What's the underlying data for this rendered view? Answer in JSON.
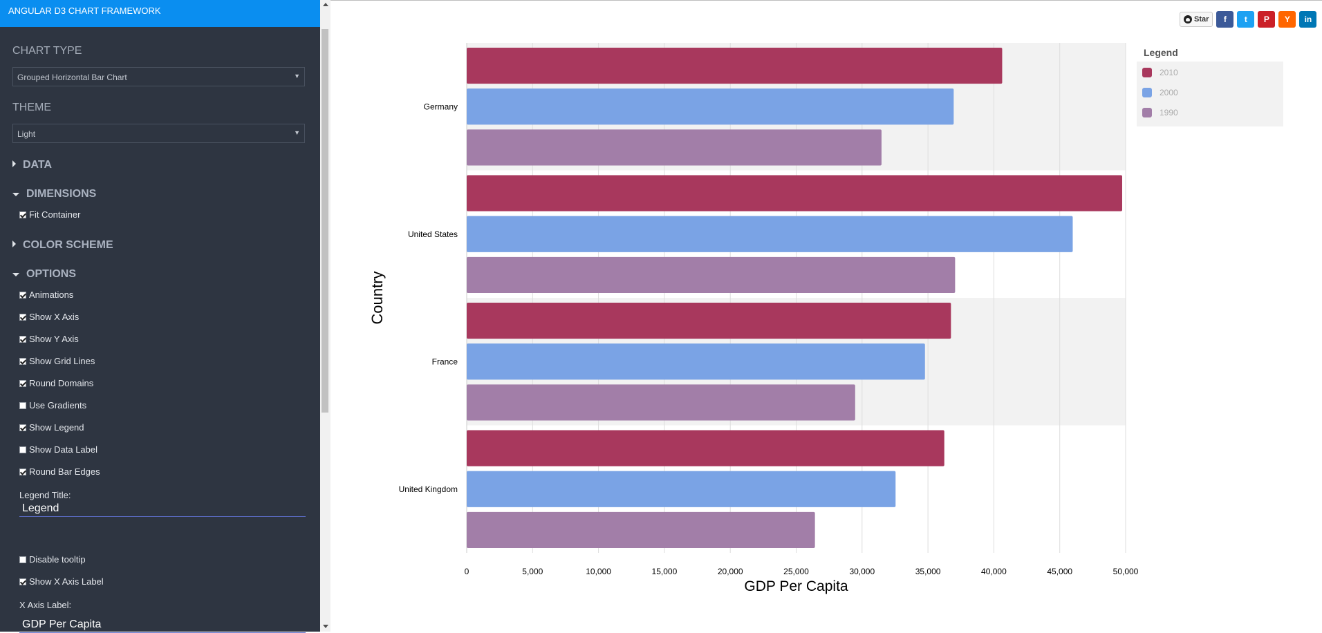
{
  "sidebar": {
    "app_title": "ANGULAR D3 CHART FRAMEWORK",
    "chart_type": {
      "label": "CHART TYPE",
      "selected": "Grouped Horizontal Bar Chart"
    },
    "theme": {
      "label": "THEME",
      "selected": "Light"
    },
    "sections": {
      "data": "DATA",
      "dimensions": "DIMENSIONS",
      "color_scheme": "COLOR SCHEME",
      "options": "OPTIONS"
    },
    "dimensions_options": [
      {
        "label": "Fit Container",
        "checked": true
      }
    ],
    "options": [
      {
        "label": "Animations",
        "checked": true
      },
      {
        "label": "Show X Axis",
        "checked": true
      },
      {
        "label": "Show Y Axis",
        "checked": true
      },
      {
        "label": "Show Grid Lines",
        "checked": true
      },
      {
        "label": "Round Domains",
        "checked": true
      },
      {
        "label": "Use Gradients",
        "checked": false
      },
      {
        "label": "Show Legend",
        "checked": true
      },
      {
        "label": "Show Data Label",
        "checked": false
      },
      {
        "label": "Round Bar Edges",
        "checked": true
      }
    ],
    "legend_title_label": "Legend Title:",
    "legend_title_value": "Legend",
    "options_more": [
      {
        "label": "Disable tooltip",
        "checked": false
      },
      {
        "label": "Show X Axis Label",
        "checked": true
      }
    ],
    "x_axis_label_label": "X Axis Label:",
    "x_axis_label_value": "GDP Per Capita"
  },
  "share": {
    "star_label": "Star",
    "buttons": [
      {
        "icon": "facebook-icon",
        "glyph": "f",
        "color": "#3b5998"
      },
      {
        "icon": "twitter-icon",
        "glyph": "t",
        "color": "#1da1f2"
      },
      {
        "icon": "pinterest-icon",
        "glyph": "P",
        "color": "#cb2027"
      },
      {
        "icon": "hackernews-icon",
        "glyph": "Y",
        "color": "#ff6600"
      },
      {
        "icon": "linkedin-icon",
        "glyph": "in",
        "color": "#0077b5"
      }
    ]
  },
  "chart_data": {
    "type": "bar",
    "orientation": "horizontal",
    "categories": [
      "Germany",
      "United States",
      "France",
      "United Kingdom"
    ],
    "series": [
      {
        "name": "2010",
        "color": "#a8385d",
        "values": [
          40632,
          49737,
          36745,
          36240
        ]
      },
      {
        "name": "2000",
        "color": "#7aa3e5",
        "values": [
          36953,
          45986,
          34774,
          32543
        ]
      },
      {
        "name": "1990",
        "color": "#a27ea8",
        "values": [
          31476,
          37060,
          29476,
          26424
        ]
      }
    ],
    "xlabel": "GDP Per Capita",
    "ylabel": "Country",
    "xlim": [
      0,
      50000
    ],
    "xticks": [
      "0",
      "5,000",
      "10,000",
      "15,000",
      "20,000",
      "25,000",
      "30,000",
      "35,000",
      "40,000",
      "45,000",
      "50,000"
    ],
    "grid": true,
    "legend": {
      "title": "Legend",
      "position": "right"
    }
  }
}
